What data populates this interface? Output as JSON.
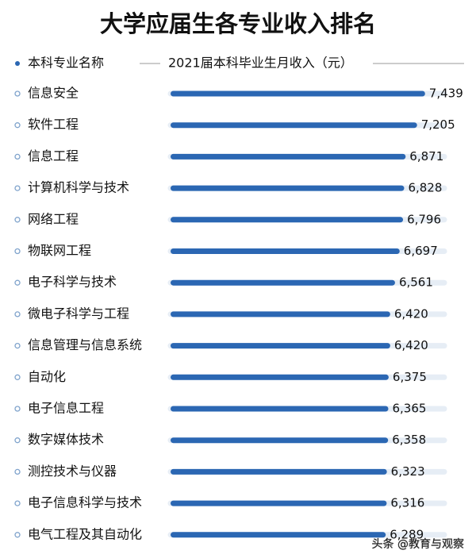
{
  "chart_data": {
    "type": "bar",
    "orientation": "horizontal",
    "title": "大学应届生各专业收入排名",
    "category_axis_title": "本科专业名称",
    "value_axis_title": "2021届本科毕业生月收入（元）",
    "categories": [
      "信息安全",
      "软件工程",
      "信息工程",
      "计算机科学与技术",
      "网络工程",
      "物联网工程",
      "电子科学与技术",
      "微电子科学与工程",
      "信息管理与信息系统",
      "自动化",
      "电子信息工程",
      "数字媒体技术",
      "测控技术与仪器",
      "电子信息科学与技术",
      "电气工程及其自动化"
    ],
    "values": [
      7439,
      7205,
      6871,
      6828,
      6796,
      6697,
      6561,
      6420,
      6420,
      6375,
      6365,
      6358,
      6323,
      6316,
      6289
    ],
    "value_labels": [
      "7,439",
      "7,205",
      "6,871",
      "6,828",
      "6,796",
      "6,697",
      "6,561",
      "6,420",
      "6,420",
      "6,375",
      "6,365",
      "6,358",
      "6,323",
      "6,316",
      "6,289"
    ],
    "color": "#2b67b3",
    "xlim": [
      0,
      8000
    ],
    "watermark": "头条 @教育与观察"
  }
}
